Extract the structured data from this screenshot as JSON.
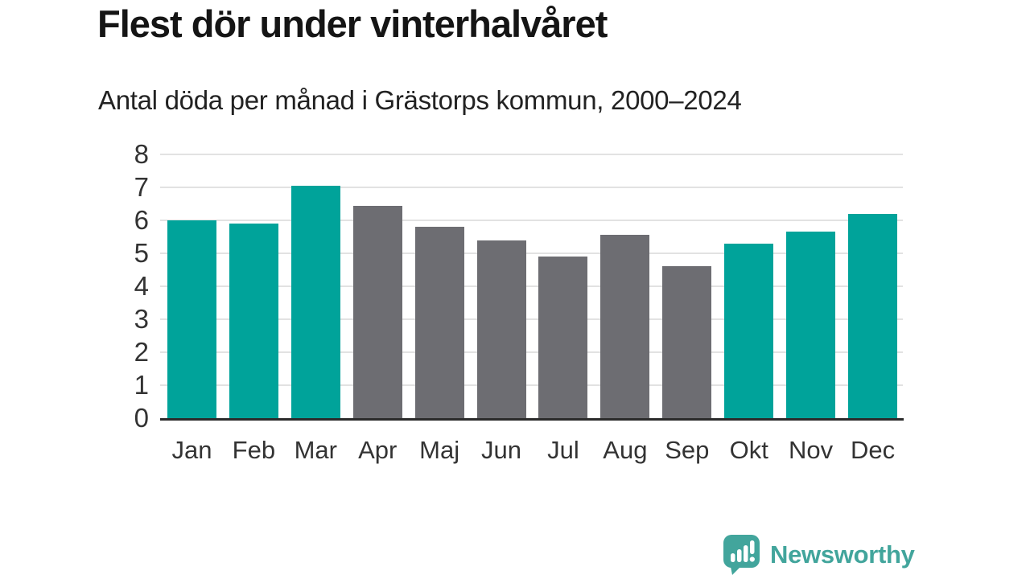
{
  "chart_data": {
    "type": "bar",
    "title": "Flest dör under vinterhalvåret",
    "subtitle": "Antal döda per månad i Grästorps kommun, 2000–2024",
    "categories": [
      "Jan",
      "Feb",
      "Mar",
      "Apr",
      "Maj",
      "Jun",
      "Jul",
      "Aug",
      "Sep",
      "Okt",
      "Nov",
      "Dec"
    ],
    "values": [
      6.0,
      5.9,
      7.05,
      6.45,
      5.8,
      5.4,
      4.9,
      5.55,
      4.6,
      5.3,
      5.65,
      6.2
    ],
    "bar_seasons": [
      "winter",
      "winter",
      "winter",
      "summer",
      "summer",
      "summer",
      "summer",
      "summer",
      "summer",
      "winter",
      "winter",
      "winter"
    ],
    "colors": {
      "winter": "#00a39a",
      "summer": "#6d6d72"
    },
    "ylabel": "",
    "xlabel": "",
    "ylim": [
      0,
      8
    ],
    "yticks": [
      0,
      1,
      2,
      3,
      4,
      5,
      6,
      7,
      8
    ],
    "grid": true,
    "legend": "none",
    "gridline_color": "#e2e2e2",
    "axis_color": "#2b2b2b",
    "tick_label_color": "#333333"
  },
  "footer": {
    "brand_name": "Newsworthy",
    "brand_color": "#42a59c",
    "logo_icon": "speech-bubble-bar-chart-icon"
  }
}
